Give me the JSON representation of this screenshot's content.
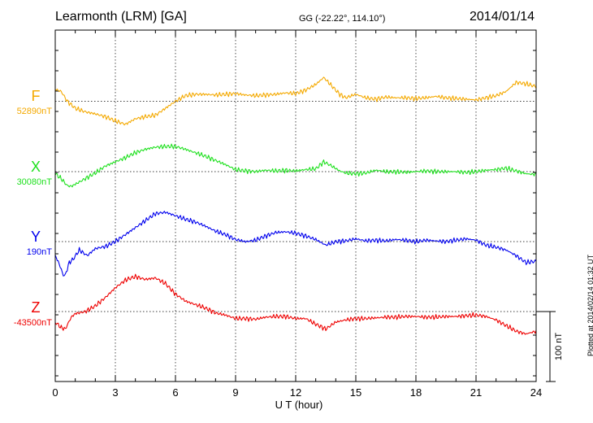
{
  "header": {
    "station": "Learmonth (LRM)  [GA]",
    "coords": "GG (-22.22°, 114.10°)",
    "date": "2014/01/14"
  },
  "footer": {
    "plotted": "Plotted at 2014/02/14 01:32 UT"
  },
  "chart_data": {
    "type": "line",
    "title": "Learmonth (LRM)  [GA]",
    "xlabel": "U T (hour)",
    "xlim": [
      0,
      24
    ],
    "xticks": [
      "0",
      "3",
      "6",
      "9",
      "12",
      "15",
      "18",
      "21",
      "24"
    ],
    "grid": true,
    "scale_bar": {
      "label": "100 nT",
      "value_nT": 100
    },
    "series": [
      {
        "name": "F",
        "baseline_label": "52890nT",
        "baseline_nT": 52890,
        "color": "#F4A900",
        "x": [
          0,
          0.3,
          0.6,
          1.0,
          1.5,
          2.0,
          2.5,
          3.0,
          3.5,
          4.0,
          4.5,
          5.0,
          5.5,
          6.0,
          6.5,
          7.0,
          7.5,
          8.0,
          8.5,
          9.0,
          9.5,
          10.0,
          10.5,
          11.0,
          11.5,
          12.0,
          12.5,
          13.0,
          13.4,
          13.8,
          14.2,
          14.5,
          15.0,
          15.5,
          16.0,
          16.5,
          17.0,
          17.5,
          18.0,
          18.5,
          19.0,
          19.5,
          20.0,
          20.5,
          21.0,
          21.5,
          22.0,
          22.5,
          23.0,
          23.5,
          24.0
        ],
        "values": [
          17,
          14,
          0,
          -10,
          -15,
          -18,
          -22,
          -28,
          -33,
          -25,
          -22,
          -20,
          -10,
          0,
          8,
          10,
          10,
          9,
          10,
          11,
          9,
          8,
          9,
          10,
          12,
          11,
          16,
          24,
          34,
          22,
          10,
          5,
          10,
          5,
          3,
          6,
          5,
          5,
          4,
          5,
          7,
          5,
          4,
          3,
          2,
          5,
          8,
          14,
          27,
          25,
          21
        ]
      },
      {
        "name": "X",
        "baseline_label": "30080nT",
        "baseline_nT": 30080,
        "color": "#1EE01E",
        "x": [
          0,
          0.3,
          0.6,
          0.8,
          1.0,
          1.5,
          2.0,
          2.5,
          3.0,
          3.5,
          4.0,
          4.5,
          5.0,
          5.5,
          6.0,
          6.5,
          7.0,
          7.5,
          8.0,
          8.5,
          9.0,
          9.5,
          10.0,
          10.5,
          11.0,
          11.5,
          12.0,
          12.5,
          13.0,
          13.4,
          13.8,
          14.2,
          14.5,
          15.0,
          15.5,
          16.0,
          16.5,
          17.0,
          17.5,
          18.0,
          18.5,
          19.0,
          19.5,
          20.0,
          20.5,
          21.0,
          21.5,
          22.0,
          22.5,
          23.0,
          23.5,
          24.0
        ],
        "values": [
          -3,
          -10,
          -20,
          -21,
          -18,
          -10,
          -2,
          8,
          14,
          20,
          27,
          32,
          35,
          36,
          36,
          32,
          27,
          22,
          16,
          10,
          3,
          1,
          0,
          2,
          1,
          2,
          1,
          3,
          4,
          14,
          8,
          1,
          -2,
          -3,
          -2,
          2,
          0,
          0,
          -1,
          0,
          1,
          0,
          0,
          0,
          -1,
          0,
          2,
          3,
          5,
          1,
          -3,
          -4
        ]
      },
      {
        "name": "Y",
        "baseline_label": "190nT",
        "baseline_nT": 190,
        "color": "#0000EE",
        "x": [
          0,
          0.2,
          0.4,
          0.5,
          0.7,
          0.9,
          1.2,
          1.6,
          2.0,
          2.5,
          3.0,
          3.5,
          4.0,
          4.5,
          5.0,
          5.5,
          6.0,
          6.5,
          7.0,
          7.5,
          8.0,
          8.5,
          9.0,
          9.5,
          10.0,
          10.5,
          11.0,
          11.5,
          12.0,
          12.5,
          13.0,
          13.5,
          14.0,
          14.5,
          15.0,
          15.5,
          16.0,
          16.5,
          17.0,
          17.5,
          18.0,
          18.5,
          19.0,
          19.5,
          20.0,
          20.5,
          21.0,
          21.5,
          22.0,
          22.5,
          23.0,
          23.5,
          24.0
        ],
        "values": [
          -20,
          -32,
          -48,
          -48,
          -30,
          -25,
          -12,
          -20,
          -10,
          -7,
          0,
          10,
          20,
          30,
          40,
          42,
          37,
          32,
          28,
          22,
          15,
          10,
          3,
          0,
          2,
          8,
          13,
          14,
          12,
          8,
          3,
          -5,
          0,
          1,
          4,
          1,
          2,
          1,
          3,
          2,
          0,
          2,
          1,
          0,
          2,
          4,
          2,
          -5,
          -8,
          -12,
          -20,
          -30,
          -28
        ]
      },
      {
        "name": "Z",
        "baseline_label": "-43500nT",
        "baseline_nT": -43500,
        "color": "#EE0000",
        "x": [
          0,
          0.3,
          0.5,
          0.8,
          1.0,
          1.5,
          2.0,
          2.5,
          3.0,
          3.5,
          4.0,
          4.5,
          5.0,
          5.5,
          6.0,
          6.5,
          7.0,
          7.5,
          8.0,
          8.5,
          9.0,
          9.5,
          10.0,
          10.5,
          11.0,
          11.5,
          12.0,
          12.5,
          13.0,
          13.5,
          14.0,
          14.5,
          15.0,
          15.5,
          16.0,
          16.5,
          17.0,
          17.5,
          18.0,
          18.5,
          19.0,
          19.5,
          20.0,
          20.5,
          21.0,
          21.5,
          22.0,
          22.5,
          23.0,
          23.5,
          24.0
        ],
        "values": [
          -15,
          -23,
          -25,
          -8,
          -3,
          0,
          8,
          20,
          34,
          45,
          50,
          46,
          48,
          40,
          25,
          15,
          10,
          5,
          -2,
          -5,
          -10,
          -10,
          -11,
          -8,
          -7,
          -7,
          -10,
          -10,
          -18,
          -25,
          -15,
          -12,
          -10,
          -10,
          -9,
          -8,
          -8,
          -7,
          -7,
          -8,
          -8,
          -7,
          -7,
          -6,
          -5,
          -7,
          -12,
          -20,
          -28,
          -32,
          -28
        ]
      }
    ]
  }
}
